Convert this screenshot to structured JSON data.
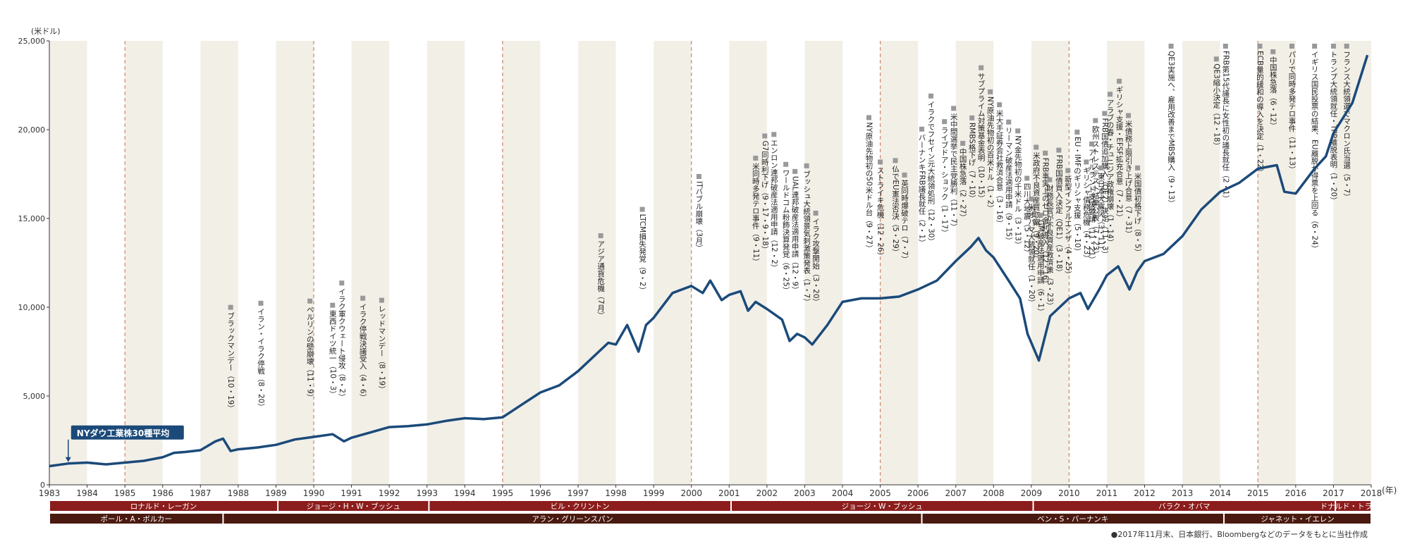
{
  "chart_data": {
    "type": "line",
    "title": "",
    "xlabel": "(年)",
    "ylabel": "(米ドル)",
    "xlim": [
      1983,
      2018
    ],
    "ylim": [
      0,
      25000
    ],
    "y_ticks": [
      "0",
      "5,000",
      "10,000",
      "15,000",
      "20,000",
      "25,000"
    ],
    "y_tick_values": [
      0,
      5000,
      10000,
      15000,
      20000,
      25000
    ],
    "x_ticks": [
      "1983",
      "1984",
      "1985",
      "1986",
      "1987",
      "1988",
      "1989",
      "1990",
      "1991",
      "1992",
      "1993",
      "1994",
      "1995",
      "1996",
      "1997",
      "1998",
      "1999",
      "2000",
      "2001",
      "2002",
      "2003",
      "2004",
      "2005",
      "2006",
      "2007",
      "2008",
      "2009",
      "2010",
      "2011",
      "2012",
      "2013",
      "2014",
      "2015",
      "2016",
      "2017",
      "2018"
    ],
    "grid": false,
    "dashed_years": [
      1985,
      1990,
      1995,
      2000,
      2005,
      2010,
      2015
    ],
    "series": [
      {
        "name": "NYダウ工業株30種平均",
        "color": "#1b4a7a",
        "x": [
          1983.0,
          1983.5,
          1984.0,
          1984.5,
          1985.0,
          1985.5,
          1986.0,
          1986.3,
          1986.6,
          1987.0,
          1987.4,
          1987.6,
          1987.8,
          1988.0,
          1988.5,
          1989.0,
          1989.5,
          1990.0,
          1990.5,
          1990.8,
          1991.0,
          1991.5,
          1992.0,
          1992.5,
          1993.0,
          1993.5,
          1994.0,
          1994.5,
          1995.0,
          1995.5,
          1996.0,
          1996.5,
          1997.0,
          1997.5,
          1997.8,
          1998.0,
          1998.3,
          1998.6,
          1998.8,
          1999.0,
          1999.5,
          2000.0,
          2000.3,
          2000.5,
          2000.8,
          2001.0,
          2001.3,
          2001.5,
          2001.7,
          2002.0,
          2002.4,
          2002.6,
          2002.8,
          2003.0,
          2003.2,
          2003.6,
          2004.0,
          2004.5,
          2005.0,
          2005.5,
          2006.0,
          2006.5,
          2007.0,
          2007.4,
          2007.6,
          2007.8,
          2008.0,
          2008.4,
          2008.7,
          2008.9,
          2009.0,
          2009.2,
          2009.5,
          2010.0,
          2010.3,
          2010.5,
          2010.8,
          2011.0,
          2011.3,
          2011.6,
          2011.8,
          2012.0,
          2012.5,
          2013.0,
          2013.5,
          2014.0,
          2014.5,
          2015.0,
          2015.5,
          2015.7,
          2016.0,
          2016.5,
          2016.8,
          2017.0,
          2017.5,
          2017.9
        ],
        "values": [
          1050,
          1200,
          1250,
          1150,
          1250,
          1350,
          1550,
          1800,
          1850,
          1950,
          2450,
          2600,
          1900,
          2000,
          2100,
          2250,
          2550,
          2700,
          2850,
          2450,
          2650,
          2950,
          3250,
          3300,
          3400,
          3600,
          3750,
          3700,
          3800,
          4500,
          5200,
          5600,
          6400,
          7400,
          8000,
          7900,
          9000,
          7500,
          9000,
          9400,
          10800,
          11200,
          10800,
          11500,
          10400,
          10700,
          10900,
          9800,
          10300,
          9900,
          9300,
          8100,
          8500,
          8300,
          7900,
          9000,
          10300,
          10500,
          10500,
          10600,
          11000,
          11500,
          12600,
          13400,
          13900,
          13200,
          12800,
          11500,
          10500,
          8500,
          8000,
          7000,
          9500,
          10500,
          10800,
          9900,
          11000,
          11800,
          12300,
          11000,
          12000,
          12600,
          13000,
          14000,
          15500,
          16500,
          17000,
          17800,
          18000,
          16500,
          16400,
          17800,
          18500,
          19800,
          21500,
          24200
        ]
      }
    ],
    "start_marker": {
      "year": 1983.5,
      "label": "NYダウ工業株30種平均"
    },
    "annotations": [
      {
        "year": 1987.8,
        "text": "ブラックマンデー（10・19）"
      },
      {
        "year": 1988.6,
        "text": "イラン・イラク停戦（8・20）"
      },
      {
        "year": 1989.9,
        "text": "ベルリンの壁崩壊（11・9）"
      },
      {
        "year": 1990.5,
        "text": "東西ドイツ統一（10・3）"
      },
      {
        "year": 1990.5,
        "text": "イラク軍クウェート侵攻（8・2）"
      },
      {
        "year": 1991.3,
        "text": "イラク停戦決議受入（4・6）"
      },
      {
        "year": 1991.8,
        "text": "レッドマンデー（8・19）"
      },
      {
        "year": 1997.6,
        "text": "アジア通貨危機（7月）"
      },
      {
        "year": 1998.7,
        "text": "LTCM損失発覚（9・2）"
      },
      {
        "year": 2000.2,
        "text": "ITバブル崩壊（3月）"
      },
      {
        "year": 2001.7,
        "text": "米同時多発テロ事件（9・11）"
      },
      {
        "year": 2001.7,
        "text": "G7同時利下げ（9・17・9・18）"
      },
      {
        "year": 2001.95,
        "text": "エンロン連邦破産法適用申請（12・2）"
      },
      {
        "year": 2002.5,
        "text": "ワールドコム粉飾決算発覚（6・25）"
      },
      {
        "year": 2002.7,
        "text": "UAL連邦破産法適用申請（12・9）"
      },
      {
        "year": 2003.05,
        "text": "ブッシュ大統領景気刺激策発表（1・7）"
      },
      {
        "year": 2003.25,
        "text": "イラク攻撃開始（3・20）"
      },
      {
        "year": 2004.7,
        "text": "NY原油先物初の50米ドル台（9・27）"
      },
      {
        "year": 2005.0,
        "text": "ストライキ危機（12・26）"
      },
      {
        "year": 2005.4,
        "text": "仏でEU憲法否決（5・29）"
      },
      {
        "year": 2005.5,
        "text": "英同時爆破テロ（7・7）"
      },
      {
        "year": 2006.1,
        "text": "バーナンキFRB議長就任（2・1）"
      },
      {
        "year": 2006.3,
        "text": "イラクでフセイン元大統領処刑（12・30）"
      },
      {
        "year": 2006.7,
        "text": "ライブドア・ショック（1・17）"
      },
      {
        "year": 2006.85,
        "text": "米中間選挙で民主党勝利（11・7）"
      },
      {
        "year": 2007.1,
        "text": "中国株急落（2・27）"
      },
      {
        "year": 2007.4,
        "text": "RMBS格下げ（7・10）"
      },
      {
        "year": 2007.65,
        "text": "サブプライム対策基金表明（10・15）"
      },
      {
        "year": 2007.8,
        "text": "NY原油先物初の百米ドル（1・2）"
      },
      {
        "year": 2008.1,
        "text": "米大手証券会社救済合意（3・16）"
      },
      {
        "year": 2008.4,
        "text": "リーマン破産法適用申請（9・15）"
      },
      {
        "year": 2008.55,
        "text": "NY金先物初の千米ドル（3・13）"
      },
      {
        "year": 2008.6,
        "text": "四川大地震（5・12）"
      },
      {
        "year": 2008.7,
        "text": "米政府不良資産買取案（9・20）"
      },
      {
        "year": 2008.9,
        "text": "FRB事実上のゼロ金利導入（12・16）"
      },
      {
        "year": 2009.0,
        "text": "米オバマ大統領就任（1・20）"
      },
      {
        "year": 2009.1,
        "text": "GM破産法適用申請（6・1）"
      },
      {
        "year": 2009.3,
        "text": "財務長官が不良資産救済策（3・23）"
      },
      {
        "year": 2009.4,
        "text": "FRB国債買入決定（QE1）（3・18）"
      },
      {
        "year": 2009.55,
        "text": "新型インフルエンザ（4・25）"
      },
      {
        "year": 2009.8,
        "text": "EU・IMFのギリシャ支援（5・10）"
      },
      {
        "year": 2010.0,
        "text": "ギリシャ債務危機（4・23）"
      },
      {
        "year": 2010.25,
        "text": "欧州ストレステスト結果公表（7・23）"
      },
      {
        "year": 2010.5,
        "text": "FRB国債追加購入（QE2）決定（11・3）"
      },
      {
        "year": 2010.6,
        "text": "アイルランド支援要請（11・21）"
      },
      {
        "year": 2010.8,
        "text": "東日本大震災（3・11）"
      },
      {
        "year": 2010.9,
        "text": "アラブの春・チュニジア政権崩壊（1・14）"
      },
      {
        "year": 2011.2,
        "text": "ギリシャ支援・EFSF拡充合意（7・21）"
      },
      {
        "year": 2011.4,
        "text": "米債務上限引き上げ合意（7・31）"
      },
      {
        "year": 2011.6,
        "text": "米国債初格下げ（8・5）"
      },
      {
        "year": 2012.7,
        "text": "QE3実施へ、雇用改善までMBS購入（9・13）"
      },
      {
        "year": 2013.9,
        "text": "QE3縮小決定（12・18）"
      },
      {
        "year": 2014.0,
        "text": "FRB第15代議長に女性初の議長就任（2・1）"
      },
      {
        "year": 2015.05,
        "text": "ECB量的緩和の導入を決定（1・22）"
      },
      {
        "year": 2015.4,
        "text": "中国株急落（6・12）"
      },
      {
        "year": 2015.9,
        "text": "パリで同時多発テロ事件（11・13）"
      },
      {
        "year": 2016.5,
        "text": "イギリス国民投票の結果、EU離脱が得票を上回る（6・24）"
      },
      {
        "year": 2017.0,
        "text": "トランプ大統領就任・TPP離脱表明（1・20）"
      },
      {
        "year": 2017.35,
        "text": "フランス大統領選でマクロン氏当選（5・7）"
      }
    ],
    "presidents": [
      {
        "name": "ロナルド・レーガン",
        "start": 1983.0,
        "end": 1989.05
      },
      {
        "name": "ジョージ・H・W・ブッシュ",
        "start": 1989.05,
        "end": 1993.05
      },
      {
        "name": "ビル・クリントン",
        "start": 1993.05,
        "end": 2001.05
      },
      {
        "name": "ジョージ・W・ブッシュ",
        "start": 2001.05,
        "end": 2009.05
      },
      {
        "name": "バラク・オバマ",
        "start": 2009.05,
        "end": 2017.05
      },
      {
        "name": "ドナルド・トランプ",
        "start": 2017.05,
        "end": 2018.0
      }
    ],
    "fed_chairs": [
      {
        "name": "ポール・A・ボルカー",
        "start": 1983.0,
        "end": 1987.6
      },
      {
        "name": "アラン・グリーンスパン",
        "start": 1987.6,
        "end": 2006.1
      },
      {
        "name": "ベン・S・バーナンキ",
        "start": 2006.1,
        "end": 2014.1
      },
      {
        "name": "ジャネット・イエレン",
        "start": 2014.1,
        "end": 2018.0
      }
    ],
    "source_note": "●2017年11月末、日本銀行、Bloombergなどのデータをもとに当社作成"
  },
  "colors": {
    "line": "#1b4a7a",
    "band_dark": "#f2efe7",
    "band_light": "#ffffff",
    "dashed": "#c9876a",
    "president_bar": "#8c1d1d",
    "fed_bar": "#4a1a10",
    "annotation_square": "#999999",
    "note_dot": "#c0272d"
  }
}
